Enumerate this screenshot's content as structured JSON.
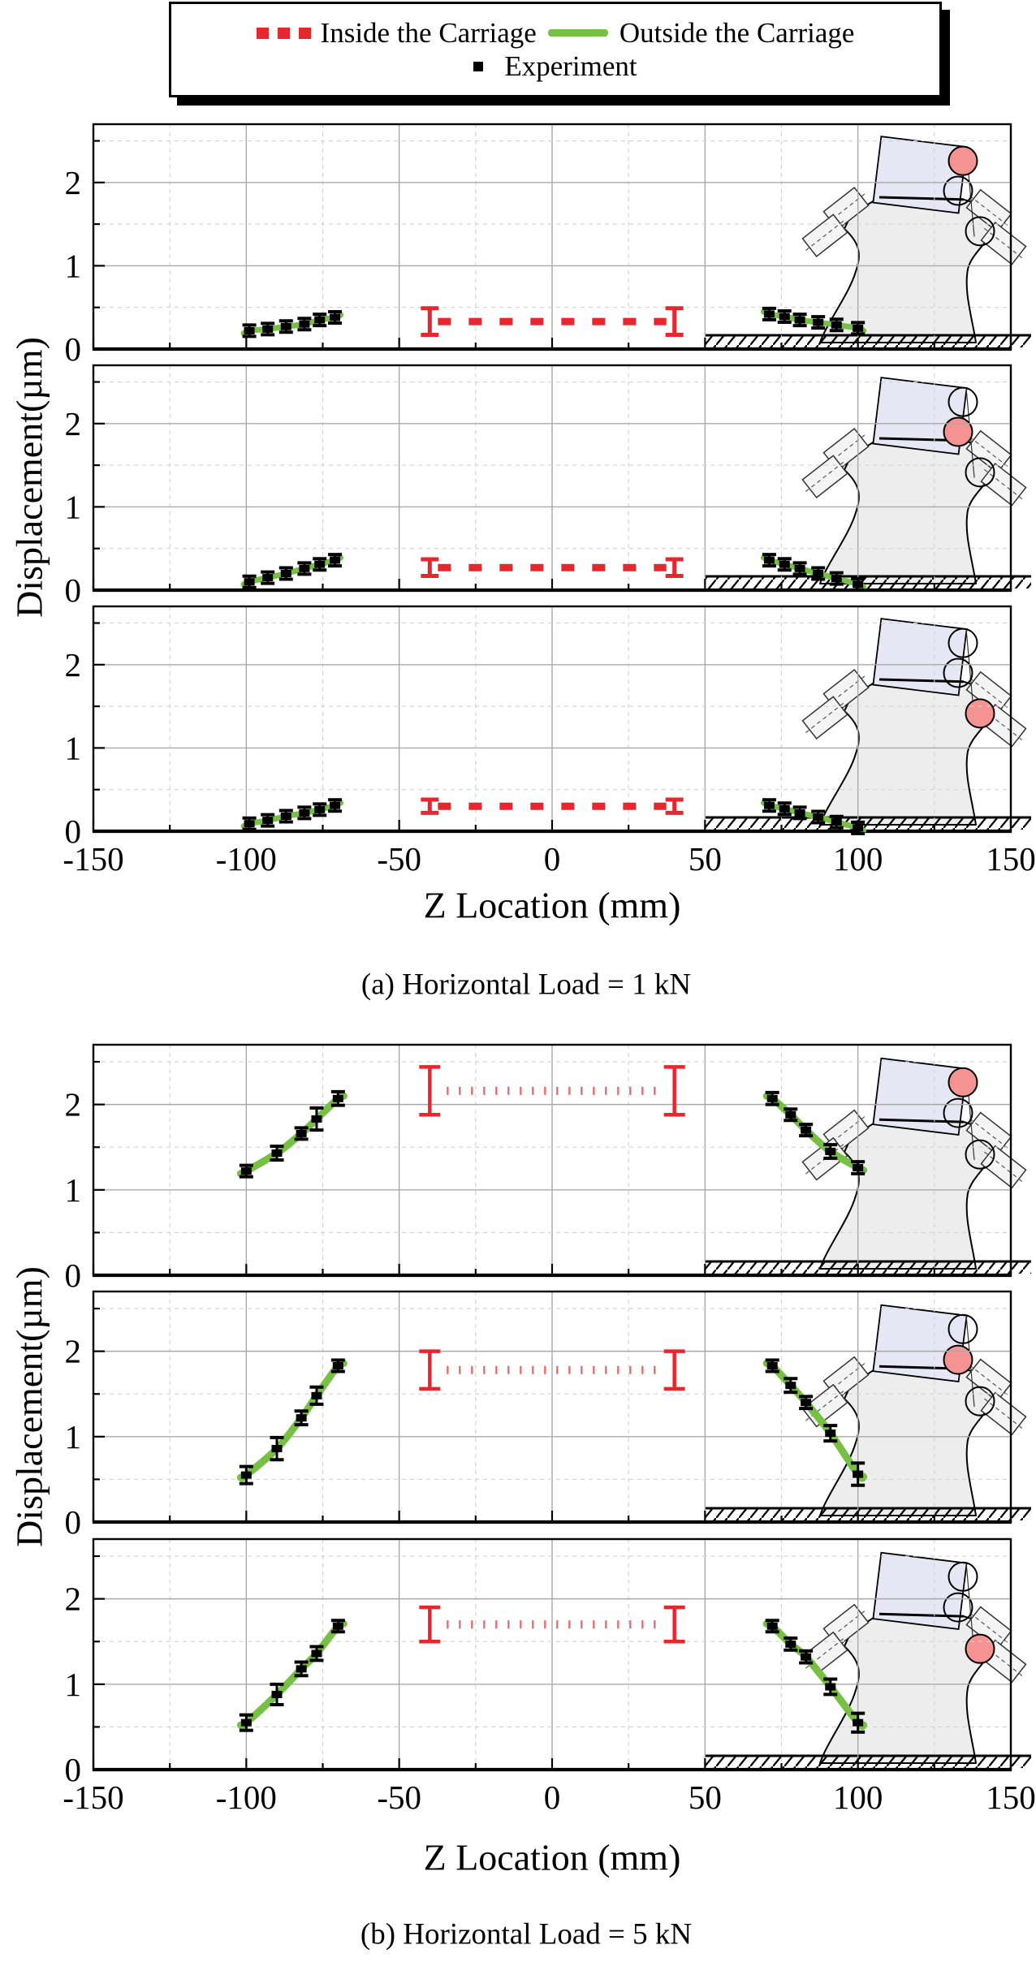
{
  "figure": {
    "legend": {
      "items": [
        {
          "label": "Inside the Carriage",
          "swatch": "red-dashed",
          "color": "#e8262d"
        },
        {
          "label": "Outside the Carriage",
          "swatch": "green-solid",
          "color": "#76c043"
        },
        {
          "label": "Experiment",
          "swatch": "black-square",
          "color": "#000000"
        }
      ]
    },
    "colors": {
      "inside_line": "#e8262d",
      "inside_dotted": "#dd7070",
      "outside_line": "#76c043",
      "experiment_marker": "#000000",
      "grid_major": "#a9a9a9",
      "grid_minor": "#d2d2d2",
      "inset_column_fill": "#ededed",
      "inset_carriage_fill": "#e6e6f5",
      "highlight_circle_fill": "#f49391"
    }
  },
  "chart_data": [
    {
      "type": "line",
      "panel_label": "a",
      "caption": "(a) Horizontal Load = 1 kN",
      "xlabel": "Z Location (mm)",
      "ylabel": "Displacement(µm)",
      "xlim": [
        -150,
        150
      ],
      "ylim": [
        0,
        2.7
      ],
      "grid": true,
      "legend_position": "top",
      "xticks": {
        "values": [
          -150,
          -100,
          -50,
          0,
          50,
          100,
          150
        ],
        "labels": [
          "-150",
          "-100",
          "-50",
          "0",
          "50",
          "100",
          "150"
        ]
      },
      "yticks": {
        "values": [
          0,
          1,
          2
        ],
        "labels": [
          "0",
          "1",
          "2"
        ]
      },
      "subplots": [
        {
          "measurement_point": "carriage-top",
          "highlight_circle": "top",
          "inside_carriage": {
            "x_start": -40,
            "x_end": 40,
            "value": 0.33,
            "end_error": 0.16
          },
          "outside_left": {
            "x": [
              -99,
              -93,
              -87,
              -81,
              -76,
              -71
            ],
            "y": [
              0.22,
              0.24,
              0.27,
              0.3,
              0.35,
              0.38
            ],
            "err": [
              0.04,
              0.04,
              0.04,
              0.05,
              0.06,
              0.05
            ]
          },
          "outside_right": {
            "x": [
              71,
              76,
              81,
              87,
              93,
              100
            ],
            "y": [
              0.42,
              0.39,
              0.35,
              0.32,
              0.29,
              0.25
            ],
            "err": [
              0.05,
              0.04,
              0.04,
              0.04,
              0.04,
              0.04
            ]
          }
        },
        {
          "measurement_point": "carriage-column-junction",
          "highlight_circle": "middle",
          "inside_carriage": {
            "x_start": -40,
            "x_end": 40,
            "value": 0.27,
            "end_error": 0.1
          },
          "outside_left": {
            "x": [
              -99,
              -93,
              -87,
              -81,
              -76,
              -71
            ],
            "y": [
              0.1,
              0.15,
              0.2,
              0.26,
              0.31,
              0.36
            ],
            "err": [
              0.04,
              0.04,
              0.04,
              0.05,
              0.05,
              0.04
            ]
          },
          "outside_right": {
            "x": [
              71,
              76,
              81,
              87,
              93,
              100
            ],
            "y": [
              0.36,
              0.31,
              0.26,
              0.2,
              0.14,
              0.07
            ],
            "err": [
              0.04,
              0.04,
              0.04,
              0.04,
              0.04,
              0.04
            ]
          }
        },
        {
          "measurement_point": "column-side",
          "highlight_circle": "bottom",
          "inside_carriage": {
            "x_start": -40,
            "x_end": 40,
            "value": 0.3,
            "end_error": 0.08
          },
          "outside_left": {
            "x": [
              -99,
              -93,
              -87,
              -81,
              -76,
              -71
            ],
            "y": [
              0.09,
              0.13,
              0.18,
              0.22,
              0.26,
              0.31
            ],
            "err": [
              0.04,
              0.04,
              0.04,
              0.04,
              0.04,
              0.04
            ]
          },
          "outside_right": {
            "x": [
              71,
              76,
              81,
              87,
              93,
              100
            ],
            "y": [
              0.31,
              0.27,
              0.22,
              0.17,
              0.11,
              0.04
            ],
            "err": [
              0.04,
              0.04,
              0.04,
              0.04,
              0.04,
              0.04
            ]
          }
        }
      ]
    },
    {
      "type": "line",
      "panel_label": "b",
      "caption": "(b) Horizontal Load = 5 kN",
      "xlabel": "Z Location (mm)",
      "ylabel": "Displacement(µm)",
      "xlim": [
        -150,
        150
      ],
      "ylim": [
        0,
        2.7
      ],
      "grid": true,
      "legend_position": "top",
      "xticks": {
        "values": [
          -150,
          -100,
          -50,
          0,
          50,
          100,
          150
        ],
        "labels": [
          "-150",
          "-100",
          "-50",
          "0",
          "50",
          "100",
          "150"
        ]
      },
      "yticks": {
        "values": [
          0,
          1,
          2
        ],
        "labels": [
          "0",
          "1",
          "2"
        ]
      },
      "subplots": [
        {
          "measurement_point": "carriage-top",
          "highlight_circle": "top",
          "inside_carriage": {
            "x_start": -40,
            "x_end": 40,
            "value": 2.16,
            "end_error": 0.28
          },
          "outside_left": {
            "x": [
              -100,
              -90,
              -82,
              -77,
              -70
            ],
            "y": [
              1.22,
              1.43,
              1.66,
              1.83,
              2.07
            ],
            "err": [
              0.06,
              0.08,
              0.06,
              0.13,
              0.08
            ]
          },
          "outside_right": {
            "x": [
              72,
              78,
              83,
              91,
              100
            ],
            "y": [
              2.07,
              1.88,
              1.7,
              1.45,
              1.26
            ],
            "err": [
              0.07,
              0.06,
              0.06,
              0.08,
              0.07
            ]
          }
        },
        {
          "measurement_point": "carriage-column-junction",
          "highlight_circle": "middle",
          "inside_carriage": {
            "x_start": -40,
            "x_end": 40,
            "value": 1.78,
            "end_error": 0.22
          },
          "outside_left": {
            "x": [
              -100,
              -90,
              -82,
              -77,
              -70
            ],
            "y": [
              0.55,
              0.86,
              1.22,
              1.48,
              1.83
            ],
            "err": [
              0.1,
              0.13,
              0.08,
              0.1,
              0.06
            ]
          },
          "outside_right": {
            "x": [
              72,
              78,
              83,
              91,
              100
            ],
            "y": [
              1.83,
              1.6,
              1.4,
              1.04,
              0.56
            ],
            "err": [
              0.06,
              0.08,
              0.07,
              0.09,
              0.13
            ]
          }
        },
        {
          "measurement_point": "column-side",
          "highlight_circle": "bottom",
          "inside_carriage": {
            "x_start": -40,
            "x_end": 40,
            "value": 1.7,
            "end_error": 0.2
          },
          "outside_left": {
            "x": [
              -100,
              -90,
              -82,
              -77,
              -70
            ],
            "y": [
              0.55,
              0.88,
              1.18,
              1.36,
              1.68
            ],
            "err": [
              0.09,
              0.12,
              0.08,
              0.08,
              0.06
            ]
          },
          "outside_right": {
            "x": [
              72,
              78,
              83,
              91,
              100
            ],
            "y": [
              1.68,
              1.47,
              1.32,
              0.97,
              0.55
            ],
            "err": [
              0.06,
              0.07,
              0.07,
              0.09,
              0.11
            ]
          }
        }
      ]
    }
  ]
}
